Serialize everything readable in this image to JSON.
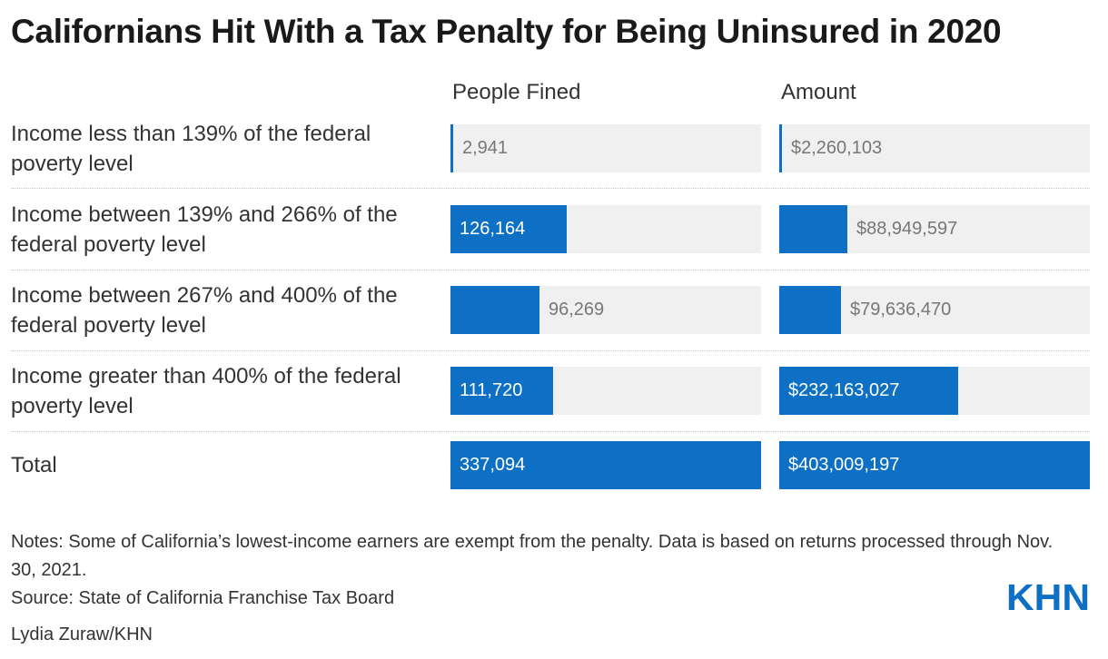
{
  "title": "Californians Hit With a Tax Penalty for Being Uninsured in 2020",
  "columns": {
    "people": "People Fined",
    "amount": "Amount"
  },
  "colors": {
    "bar": "#0d70c4",
    "track": "#f0f0f0"
  },
  "chart_data": {
    "type": "table",
    "series": [
      {
        "name": "People Fined",
        "max": 337094
      },
      {
        "name": "Amount",
        "max": 403009197
      }
    ],
    "rows": [
      {
        "label": "Income less than 139% of the federal poverty level",
        "people": 2941,
        "people_text": "2,941",
        "amount": 2260103,
        "amount_text": "$2,260,103"
      },
      {
        "label": "Income between 139% and 266% of the federal poverty level",
        "people": 126164,
        "people_text": "126,164",
        "amount": 88949597,
        "amount_text": "$88,949,597"
      },
      {
        "label": "Income between 267% and 400% of the federal poverty level",
        "people": 96269,
        "people_text": "96,269",
        "amount": 79636470,
        "amount_text": "$79,636,470"
      },
      {
        "label": "Income greater than 400% of the federal poverty level",
        "people": 111720,
        "people_text": "111,720",
        "amount": 232163027,
        "amount_text": "$232,163,027"
      },
      {
        "label": "Total",
        "people": 337094,
        "people_text": "337,094",
        "amount": 403009197,
        "amount_text": "$403,009,197"
      }
    ]
  },
  "notes": "Notes: Some of California’s lowest-income earners are exempt from the penalty. Data is based on returns processed through Nov. 30, 2021.",
  "source": "Source: State of California Franchise Tax Board",
  "credit": "Lydia Zuraw/KHN",
  "logo_text": "KHN"
}
